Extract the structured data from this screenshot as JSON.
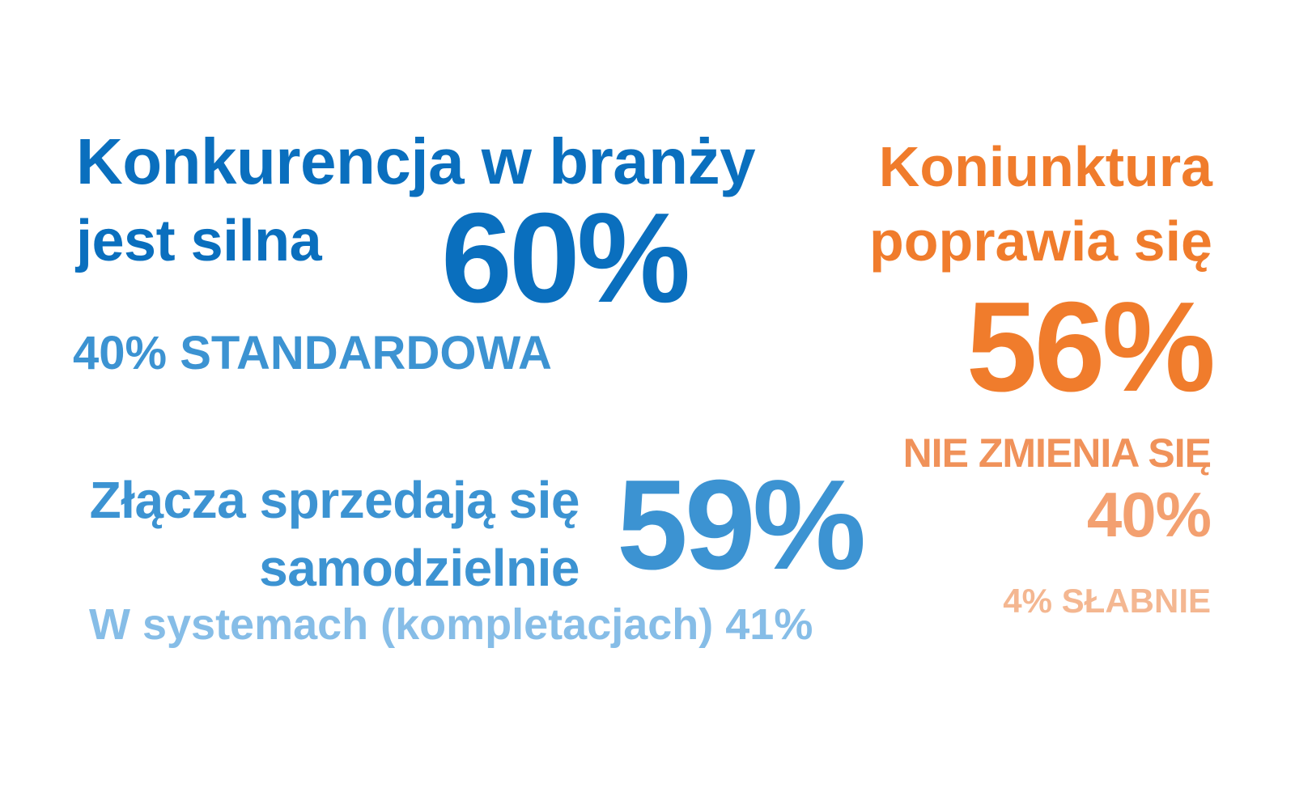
{
  "competition": {
    "line1": "Konkurencja w branży",
    "line2": "jest silna",
    "main_value": "60%",
    "secondary": "40% STANDARDOWA"
  },
  "connectors": {
    "line1": "Złącza sprzedają się",
    "line2": "samodzielnie",
    "main_value": "59%",
    "secondary": "W systemach (kompletacjach) 41%"
  },
  "economic": {
    "line1": "Koniunktura",
    "line2": "poprawia się",
    "main_value": "56%",
    "same_label": "NIE ZMIENIA SIĘ",
    "same_value": "40%",
    "weakening": "4% SŁABNIE"
  },
  "colors": {
    "blue_dark": "#0a6fbe",
    "blue_mid": "#3c93d2",
    "blue_light": "#86bde7",
    "orange_dark": "#f07c2c",
    "orange_mid": "#f0925a",
    "orange_light": "#f4b791"
  }
}
